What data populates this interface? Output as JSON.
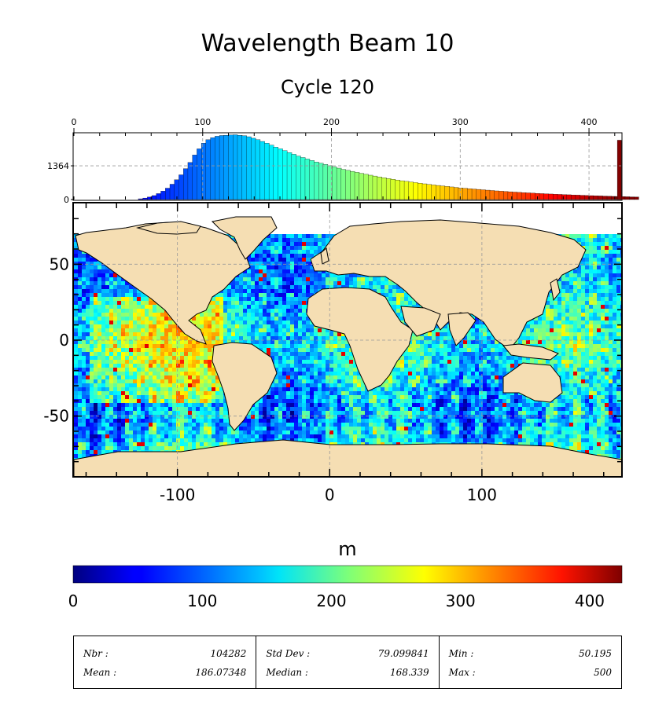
{
  "title": "Wavelength Beam 10",
  "subtitle": "Cycle 120",
  "chart_data": [
    {
      "type": "bar",
      "role": "histogram",
      "x_ticks": [
        0,
        100,
        200,
        300,
        400
      ],
      "y_ticks": [
        0,
        1364
      ],
      "xlim": [
        0,
        425
      ],
      "grid": true,
      "bins_start": 50,
      "bin_width": 3.5,
      "values": [
        30,
        60,
        100,
        160,
        240,
        340,
        460,
        620,
        800,
        1000,
        1250,
        1500,
        1800,
        2050,
        2280,
        2420,
        2500,
        2560,
        2590,
        2600,
        2610,
        2620,
        2600,
        2580,
        2540,
        2480,
        2420,
        2350,
        2280,
        2200,
        2120,
        2050,
        1980,
        1900,
        1830,
        1760,
        1700,
        1640,
        1580,
        1520,
        1470,
        1420,
        1370,
        1320,
        1270,
        1220,
        1180,
        1140,
        1100,
        1060,
        1020,
        985,
        950,
        915,
        880,
        850,
        820,
        790,
        760,
        735,
        710,
        685,
        660,
        635,
        610,
        590,
        570,
        550,
        530,
        510,
        490,
        470,
        455,
        440,
        425,
        410,
        395,
        380,
        365,
        350,
        338,
        326,
        314,
        302,
        290,
        280,
        270,
        260,
        250,
        240,
        232,
        224,
        216,
        208,
        200,
        193,
        186,
        179,
        172,
        165,
        158,
        152,
        146,
        140,
        134,
        128,
        123,
        118,
        113,
        108,
        104,
        2400
      ],
      "ylim": [
        0,
        2700
      ]
    },
    {
      "type": "heatmap",
      "role": "map",
      "x_ticks": [
        -100,
        0,
        100
      ],
      "y_ticks": [
        50,
        0,
        -50
      ],
      "xlim": [
        -168,
        192
      ],
      "ylim": [
        -90,
        90
      ],
      "grid": true,
      "land_color": "#f5deb3",
      "field": "significant wavelength from beam 10 (m) along satellite tracks"
    }
  ],
  "colorbar": {
    "label": "m",
    "ticks": [
      "0",
      "100",
      "200",
      "300",
      "400"
    ],
    "range": [
      0,
      425
    ],
    "colormap": "jet"
  },
  "stats": [
    {
      "name": "Nbr :",
      "value": "104282"
    },
    {
      "name": "Mean :",
      "value": "186.07348"
    },
    {
      "name": "Std Dev :",
      "value": "79.099841"
    },
    {
      "name": "Median :",
      "value": "168.339"
    },
    {
      "name": "Min :",
      "value": "50.195"
    },
    {
      "name": "Max :",
      "value": "500"
    }
  ]
}
